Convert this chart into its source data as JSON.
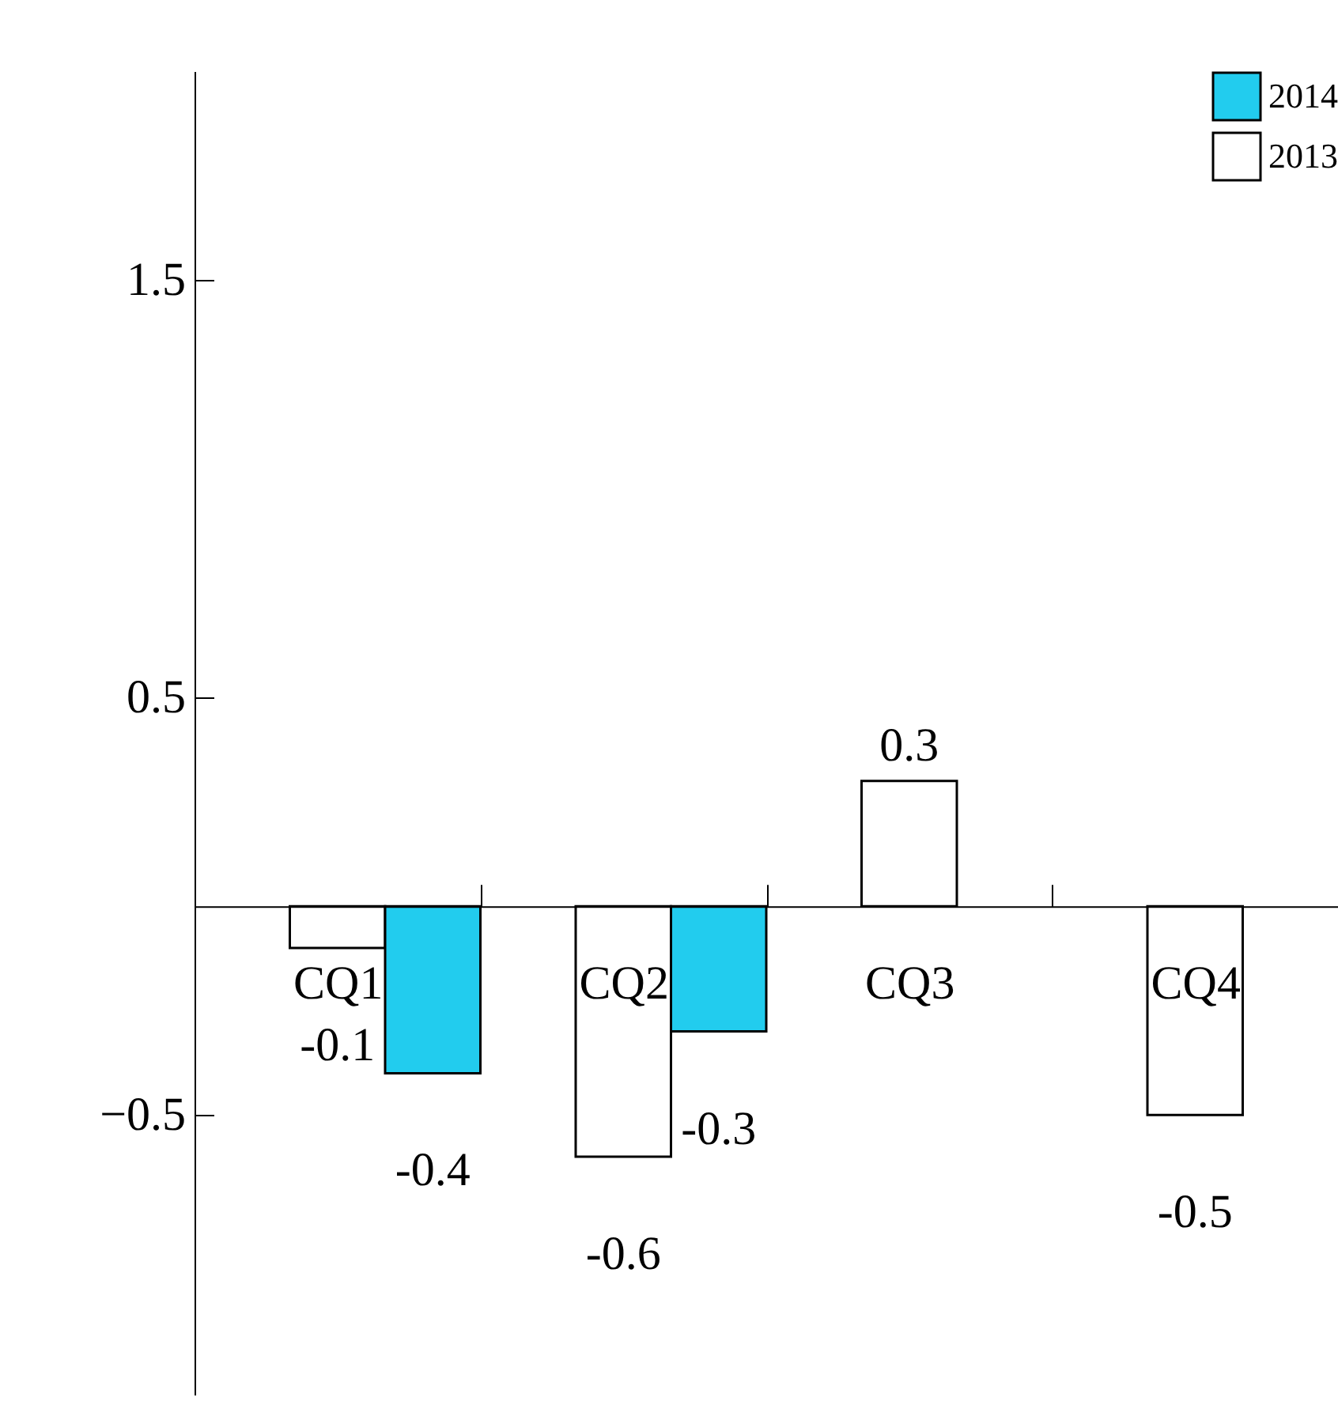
{
  "chart_data": {
    "type": "bar",
    "categories": [
      "CQ1",
      "CQ2",
      "CQ3",
      "CQ4"
    ],
    "series": [
      {
        "name": "2013",
        "color": "#ffffff",
        "values": [
          -0.1,
          -0.6,
          0.3,
          -0.5
        ]
      },
      {
        "name": "2014",
        "color": "#22ccee",
        "values": [
          -0.4,
          -0.3,
          null,
          null
        ]
      }
    ],
    "ylim": [
      -1.17,
      2.0
    ],
    "yticks": [
      1.5,
      0.5,
      -0.5
    ],
    "data_labels": true,
    "legend": "top right",
    "grid": false
  }
}
